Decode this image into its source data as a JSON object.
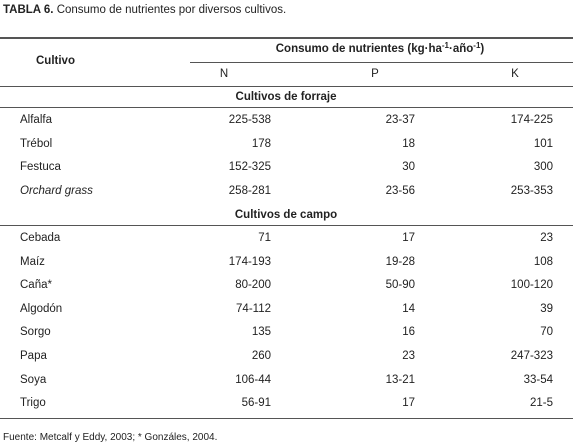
{
  "title": {
    "label": "TABLA 6.",
    "text": "Consumo de nutrientes por diversos cultivos."
  },
  "table": {
    "header": {
      "cultivo": "Cultivo",
      "group": {
        "text": "Consumo de nutrientes (kg·ha",
        "sup1": "-1",
        "mid": "·año",
        "sup2": "-1",
        "end": ")"
      },
      "columns": [
        "N",
        "P",
        "K"
      ]
    },
    "sections": [
      {
        "title": "Cultivos de forraje",
        "rows": [
          [
            "Alfalfa",
            "225-538",
            "23-37",
            "174-225"
          ],
          [
            "Trébol",
            "178",
            "18",
            "101"
          ],
          [
            "Festuca",
            "152-325",
            "30",
            "300"
          ],
          [
            "Orchard grass",
            "258-281",
            "23-56",
            "253-353"
          ]
        ]
      },
      {
        "title": "Cultivos de campo",
        "rows": [
          [
            "Cebada",
            "71",
            "17",
            "23"
          ],
          [
            "Maíz",
            "174-193",
            "19-28",
            "108"
          ],
          [
            "Caña*",
            "80-200",
            "50-90",
            "100-120"
          ],
          [
            "Algodón",
            "74-112",
            "14",
            "39"
          ],
          [
            "Sorgo",
            "135",
            "16",
            "70"
          ],
          [
            "Papa",
            "260",
            "23",
            "247-323"
          ],
          [
            "Soya",
            "106-44",
            "13-21",
            "33-54"
          ],
          [
            "Trigo",
            "56-91",
            "17",
            "21-5"
          ]
        ]
      }
    ]
  },
  "footer": "Fuente: Metcalf y Eddy, 2003; * Gonzáles, 2004."
}
